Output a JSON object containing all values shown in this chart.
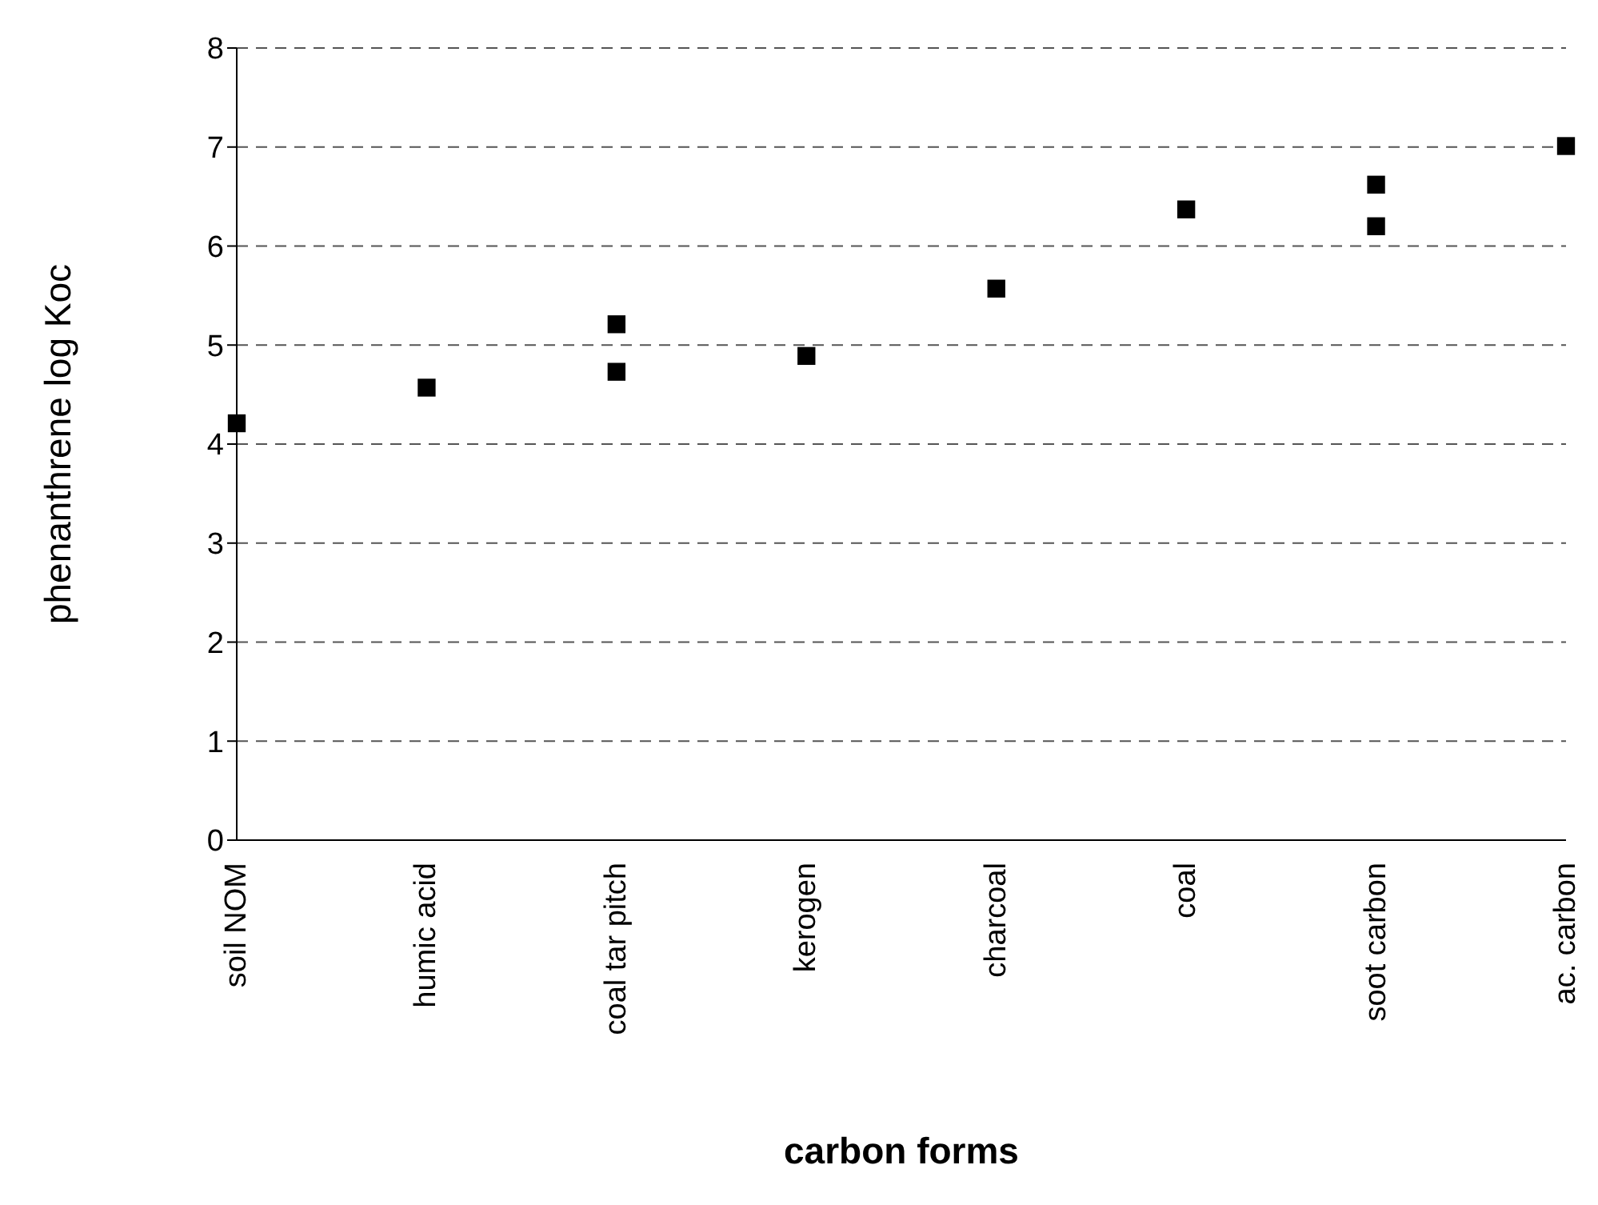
{
  "chart_data": {
    "type": "scatter",
    "xlabel": "carbon forms",
    "ylabel": "phenanthrene log Koc",
    "categories": [
      "soil NOM",
      "humic acid",
      "coal tar pitch",
      "kerogen",
      "charcoal",
      "coal",
      "soot carbon",
      "ac. carbon"
    ],
    "series": [
      {
        "color": "#000000",
        "values": [
          4.21,
          4.57,
          5.21,
          4.89,
          5.57,
          6.37,
          6.62,
          7.01
        ]
      },
      {
        "color": "#000000",
        "values": [
          null,
          null,
          4.73,
          null,
          null,
          null,
          6.2,
          null
        ]
      }
    ],
    "ylim": [
      0,
      8
    ],
    "yticks": [
      0,
      1,
      2,
      3,
      4,
      5,
      6,
      7,
      8
    ],
    "grid": "y",
    "marker": "square",
    "legend": false
  }
}
